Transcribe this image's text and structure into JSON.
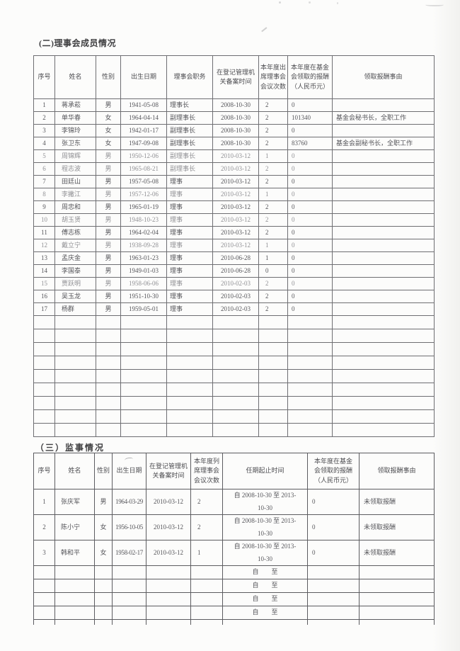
{
  "document": {
    "sections": {
      "board": {
        "title": "(二)理事会成员情况",
        "table": {
          "headers": [
            "序号",
            "姓名",
            "性别",
            "出生日期",
            "理事会职务",
            "在登记管理机\n关备案时间",
            "本年度出\n席理事会\n会议次数",
            "本年度在基金\n会领取的报酬\n（人民币元）",
            "领取报酬事由"
          ],
          "rows": [
            [
              "1",
              "蒋承菘",
              "男",
              "1941-05-08",
              "理事长",
              "2008-10-30",
              "2",
              "0",
              ""
            ],
            [
              "2",
              "单华春",
              "女",
              "1964-04-14",
              "副理事长",
              "2008-10-30",
              "2",
              "101340",
              "基金会秘书长，全职工作"
            ],
            [
              "3",
              "李锦玲",
              "女",
              "1942-01-17",
              "副理事长",
              "2008-10-30",
              "2",
              "0",
              ""
            ],
            [
              "4",
              "张卫东",
              "女",
              "1947-09-08",
              "副理事长",
              "2008-10-30",
              "2",
              "83760",
              "基金会副秘书长，全职工作"
            ],
            [
              "5",
              "周锦辉",
              "男",
              "1950-12-06",
              "副理事长",
              "2010-03-12",
              "1",
              "0",
              ""
            ],
            [
              "6",
              "程志波",
              "男",
              "1965-08-21",
              "副理事长",
              "2010-03-12",
              "2",
              "0",
              ""
            ],
            [
              "7",
              "田廷山",
              "男",
              "1957-05-08",
              "理事",
              "2010-03-12",
              "2",
              "0",
              ""
            ],
            [
              "8",
              "李撇江",
              "男",
              "1957-12-06",
              "理事",
              "2010-03-12",
              "1",
              "0",
              ""
            ],
            [
              "9",
              "周忠和",
              "男",
              "1965-01-19",
              "理事",
              "2010-03-12",
              "2",
              "0",
              ""
            ],
            [
              "10",
              "胡玉贤",
              "男",
              "1948-10-23",
              "理事",
              "2010-03-12",
              "2",
              "0",
              ""
            ],
            [
              "11",
              "傅志栋",
              "男",
              "1964-02-04",
              "理事",
              "2010-03-12",
              "2",
              "0",
              ""
            ],
            [
              "12",
              "戴立宁",
              "男",
              "1938-09-28",
              "理事",
              "2010-03-12",
              "1",
              "0",
              ""
            ],
            [
              "13",
              "孟庆金",
              "男",
              "1963-01-23",
              "理事",
              "2010-06-28",
              "1",
              "0",
              ""
            ],
            [
              "14",
              "李国泰",
              "男",
              "1949-01-03",
              "理事",
              "2010-06-28",
              "0",
              "0",
              ""
            ],
            [
              "15",
              "贾跃明",
              "男",
              "1958-06-06",
              "理事",
              "2010-02-03",
              "2",
              "0",
              ""
            ],
            [
              "16",
              "吴玉龙",
              "男",
              "1951-10-30",
              "理事",
              "2010-02-03",
              "2",
              "0",
              ""
            ],
            [
              "17",
              "杨群",
              "男",
              "1959-05-01",
              "理事",
              "2010-02-03",
              "2",
              "0",
              ""
            ]
          ],
          "empty_row_count": 9
        }
      },
      "supervisors": {
        "title": "（三）监事情况",
        "table": {
          "headers": [
            "序号",
            "姓名",
            "性别",
            "出生日期",
            "在登记管理机\n关备案时间",
            "本年度列\n席理事会\n会议次数",
            "任期起止时间",
            "本年度在基金\n会领取的报酬\n（人民币元）",
            "领取报酬事由"
          ],
          "rows": [
            [
              "1",
              "张庆军",
              "男",
              "1964-03-29",
              "2010-03-12",
              "2",
              "自 2008-10-30 至 2013-\n10-30",
              "0",
              "未领取报酬"
            ],
            [
              "2",
              "陈小宁",
              "女",
              "1956-10-05",
              "2010-03-12",
              "2",
              "自 2008-10-30 至 2013-\n10-30",
              "0",
              "未领取报酬"
            ],
            [
              "3",
              "韩和平",
              "女",
              "1958-02-17",
              "2010-03-12",
              "1",
              "自 2008-10-30 至 2013-\n10-30",
              "0",
              "未领取报酬"
            ]
          ],
          "empty_row_count": 4,
          "empty_term_label": "自　　至"
        }
      }
    }
  }
}
